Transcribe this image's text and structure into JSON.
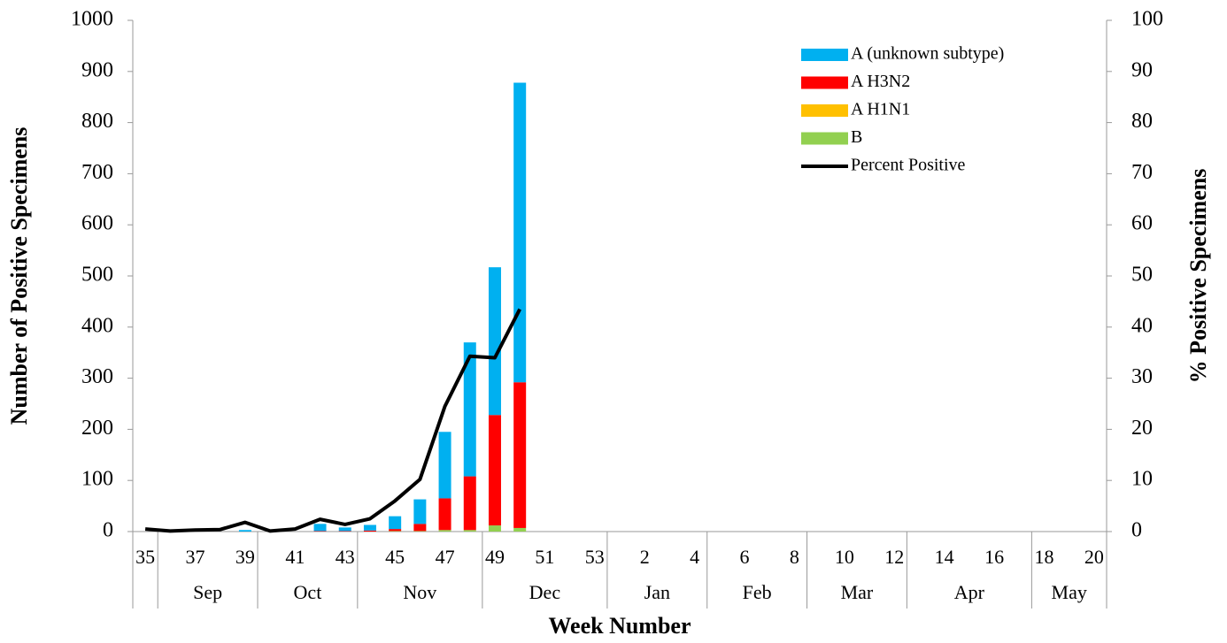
{
  "chart_data": {
    "type": "bar",
    "x_label": "Week Number",
    "y_label": "Number of Positive Specimens",
    "y2_label": "% Positive Specimens",
    "categories": [
      35,
      null,
      37,
      null,
      39,
      null,
      41,
      null,
      43,
      null,
      45,
      null,
      47,
      null,
      49,
      null,
      51,
      null,
      53,
      null,
      2,
      null,
      4,
      null,
      6,
      null,
      8,
      null,
      10,
      null,
      12,
      null,
      14,
      null,
      16,
      null,
      18,
      null,
      20
    ],
    "months": [
      "Sep",
      "Oct",
      "Nov",
      "Dec",
      "Jan",
      "Feb",
      "Mar",
      "Apr",
      "May"
    ],
    "series": [
      {
        "name": "A (unknown subtype)",
        "color": "#00b0f0",
        "values": [
          0,
          0,
          0,
          0,
          3,
          0,
          0,
          14,
          7,
          11,
          25,
          48,
          130,
          262,
          289,
          586,
          null,
          null,
          null,
          null,
          null,
          null,
          null,
          null,
          null,
          null,
          null,
          null,
          null,
          null,
          null,
          null,
          null,
          null,
          null,
          null,
          null,
          null,
          null
        ]
      },
      {
        "name": "A H3N2",
        "color": "#ff0000",
        "values": [
          0,
          0,
          0,
          0,
          0,
          0,
          0,
          1,
          1,
          2,
          4,
          14,
          62,
          105,
          216,
          285,
          null,
          null,
          null,
          null,
          null,
          null,
          null,
          null,
          null,
          null,
          null,
          null,
          null,
          null,
          null,
          null,
          null,
          null,
          null,
          null,
          null,
          null,
          null
        ]
      },
      {
        "name": "A H1N1",
        "color": "#ffc000",
        "values": [
          0,
          0,
          0,
          0,
          0,
          0,
          0,
          0,
          0,
          0,
          0,
          0,
          0,
          0,
          0,
          0,
          null,
          null,
          null,
          null,
          null,
          null,
          null,
          null,
          null,
          null,
          null,
          null,
          null,
          null,
          null,
          null,
          null,
          null,
          null,
          null,
          null,
          null,
          null
        ]
      },
      {
        "name": "B",
        "color": "#92d050",
        "values": [
          0,
          0,
          0,
          0,
          0,
          0,
          0,
          0,
          0,
          0,
          1,
          1,
          3,
          3,
          12,
          7,
          null,
          null,
          null,
          null,
          null,
          null,
          null,
          null,
          null,
          null,
          null,
          null,
          null,
          null,
          null,
          null,
          null,
          null,
          null,
          null,
          null,
          null,
          null
        ]
      },
      {
        "name": "Percent Positive",
        "color": "#000000",
        "type": "line",
        "axis": "y2",
        "values": [
          0.5,
          0.1,
          0.3,
          0.4,
          1.8,
          0.1,
          0.5,
          2.4,
          1.4,
          2.5,
          6,
          10.2,
          24.5,
          34.3,
          34,
          43.5,
          null,
          null,
          null,
          null,
          null,
          null,
          null,
          null,
          null,
          null,
          null,
          null,
          null,
          null,
          null,
          null,
          null,
          null,
          null,
          null,
          null,
          null,
          null
        ]
      }
    ],
    "ylim": [
      0,
      1000
    ],
    "yticks": [
      0,
      100,
      200,
      300,
      400,
      500,
      600,
      700,
      800,
      900,
      1000
    ],
    "y2lim": [
      0,
      100
    ],
    "y2ticks": [
      0,
      10,
      20,
      30,
      40,
      50,
      60,
      70,
      80,
      90,
      100
    ],
    "grid": false,
    "legend": "top-right"
  }
}
